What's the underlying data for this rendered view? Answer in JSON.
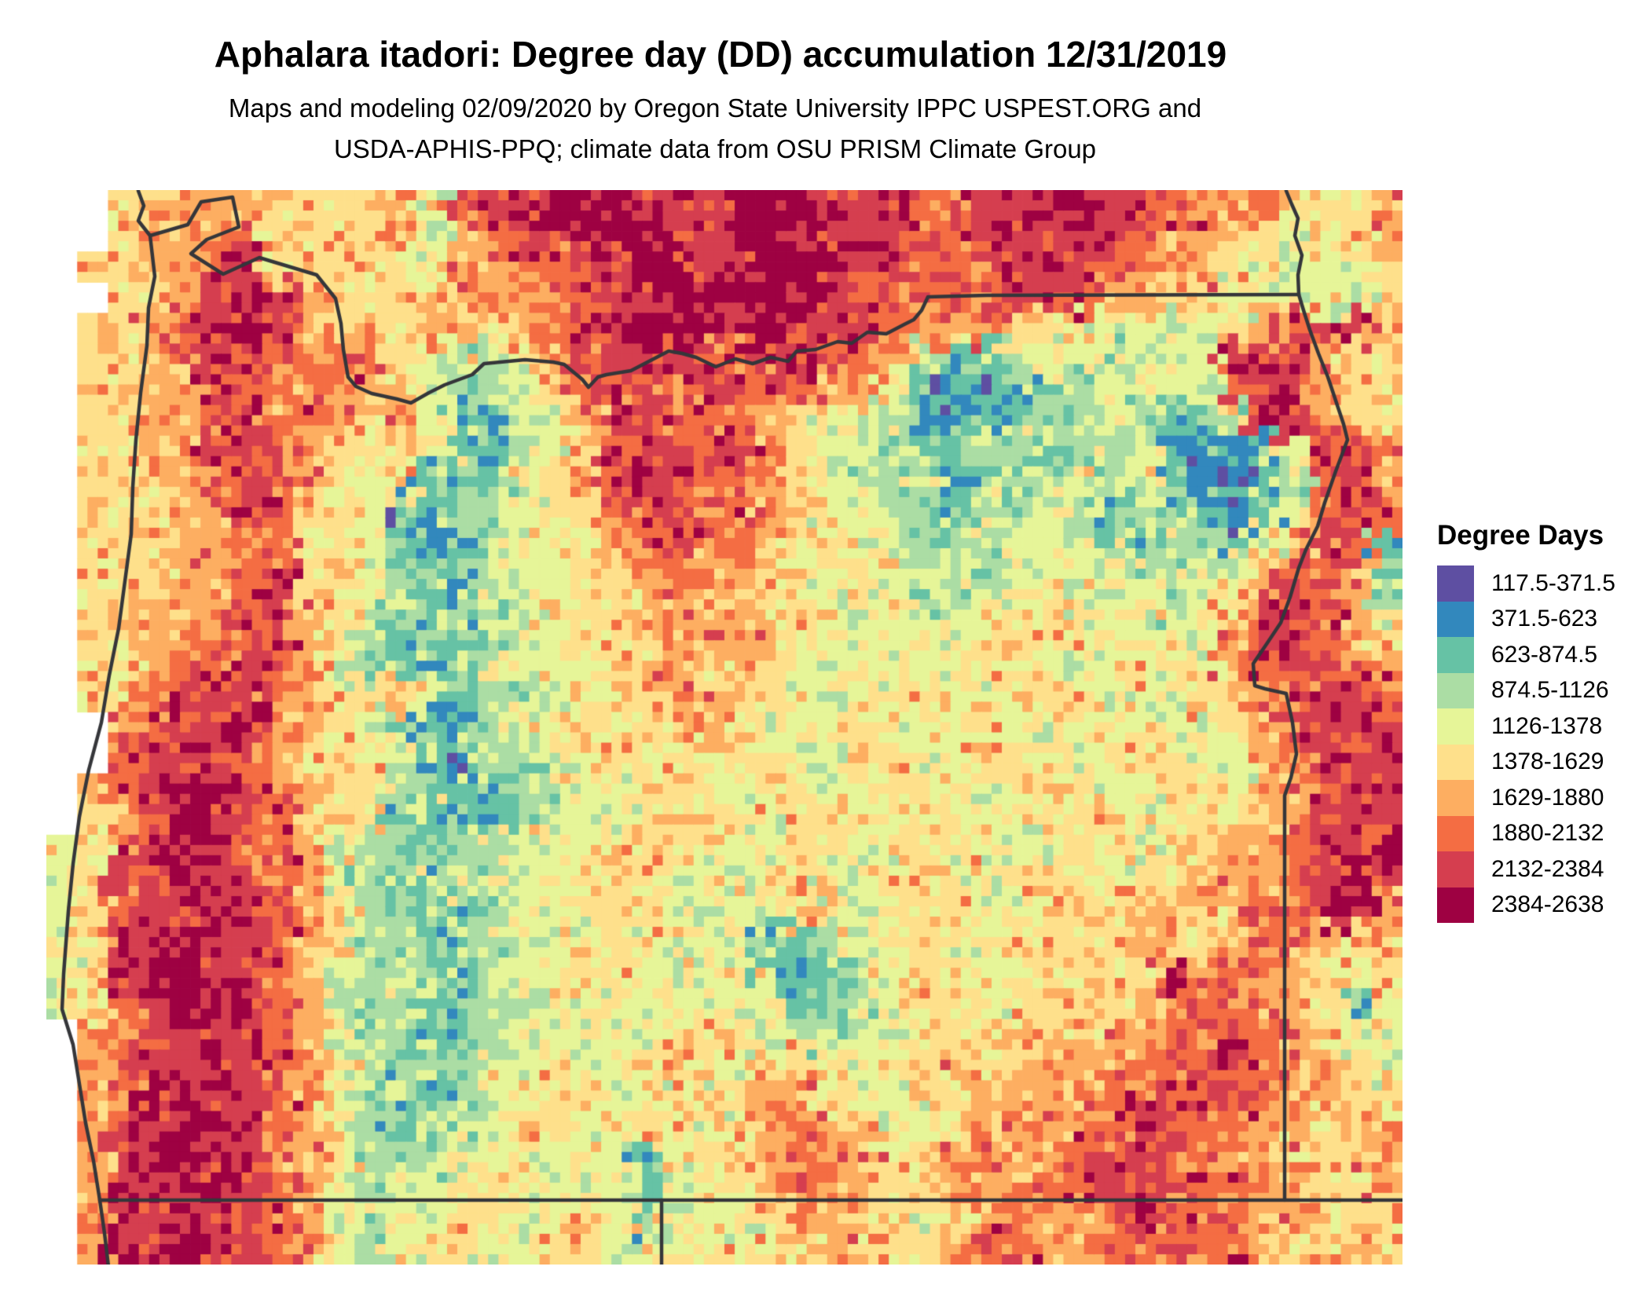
{
  "header": {
    "title": "Aphalara itadori: Degree day (DD) accumulation 12/31/2019",
    "subtitle_line1": "Maps and modeling 02/09/2020 by Oregon State University IPPC USPEST.ORG and",
    "subtitle_line2": "USDA-APHIS-PPQ; climate data from OSU PRISM Climate Group"
  },
  "legend": {
    "title": "Degree Days",
    "items": [
      {
        "range": "117.5-371.5",
        "color": "#5e4fa2"
      },
      {
        "range": "371.5-623",
        "color": "#3288bd"
      },
      {
        "range": "623-874.5",
        "color": "#66c2a5"
      },
      {
        "range": "874.5-1126",
        "color": "#abdda4"
      },
      {
        "range": "1126-1378",
        "color": "#e6f598"
      },
      {
        "range": "1378-1629",
        "color": "#fee08b"
      },
      {
        "range": "1629-1880",
        "color": "#fdae61"
      },
      {
        "range": "1880-2132",
        "color": "#f46d43"
      },
      {
        "range": "2132-2384",
        "color": "#d53e4f"
      },
      {
        "range": "2384-2638",
        "color": "#9e0142"
      }
    ]
  },
  "map": {
    "palette": [
      "#5e4fa2",
      "#3288bd",
      "#66c2a5",
      "#abdda4",
      "#e6f598",
      "#fee08b",
      "#fdae61",
      "#f46d43",
      "#d53e4f",
      "#9e0142"
    ],
    "border_color": "#35363a",
    "zones": [
      "..556665555647889998889998887788898877676556",
      "..566675555646788999889988887788888766554456",
      ".55667855555466778899889998877788877665444456",
      "..556888655556667788899988777778876655444445",
      ".55688986555665678999889888766655444345678866",
      ".55678876675434467888778877632234434448886 55",
      ".55668767766433457877887766421123344437886 55",
      ".55667877656421346887776544311223343223887 55",
      ".55668876555432445788787543322332334211248 76",
      ".55567876544223456888776544332233434211137 86",
      ".55566875541233455787676544332334323321247 87",
      ".55566775542123445678776554433344432332468 72",
      ".55566785543223445567665445443344443344687 62",
      ".56666786543233455566665544434445444345787 63",
      ".55667786532323445556666544444455544446887 65",
      ".55677876432234444566565445444554445446788 76",
      ".55788866556423345556655444554455544455678 87",
      "..67889765431234455556544554455444554456788 8",
      "..78887655442133445555554455445544455446788 8",
      ".67899876553222344455545544554455544554668 88",
      ".56898876552322334455554554455445554455668 88",
      "4578987764332334445555445544555445545566788 9",
      "4588988764323344455544455445544555455666789 8",
      "4578898765332234445544445544554455566567788 6",
      "4588988765332334455444422345544555565567765 5",
      "4589988764333234455444422234554455559677654 5",
      "4578998764332233445444442334554555566776652 4",
      ".67888876433223444445554334455556566778765 44",
      ".68889876532334454455445544556556667788776 54",
      ".67988876433234455445556654455666677887766 55",
      ".68899876432334554455456765445676678877665 56",
      ".68998876533344544424556776556766788776655 66",
      ".68889876434455444424556766556677788877665 56",
      ".68898876434455445424445665545676678776665 55",
      ".69898876434554455444544566556776677877655 65"
    ],
    "borders": {
      "coastline": [
        [
          176,
          243
        ],
        [
          183,
          262
        ],
        [
          176,
          281
        ],
        [
          191,
          300
        ],
        [
          197,
          352
        ],
        [
          189,
          392
        ],
        [
          187,
          440
        ],
        [
          179,
          500
        ],
        [
          173,
          560
        ],
        [
          169,
          620
        ],
        [
          167,
          680
        ],
        [
          159,
          740
        ],
        [
          151,
          800
        ],
        [
          139,
          860
        ],
        [
          129,
          920
        ],
        [
          113,
          980
        ],
        [
          101,
          1040
        ],
        [
          93,
          1100
        ],
        [
          87,
          1160
        ],
        [
          81,
          1240
        ],
        [
          79,
          1285
        ],
        [
          93,
          1330
        ],
        [
          101,
          1380
        ],
        [
          109,
          1430
        ],
        [
          119,
          1478
        ],
        [
          127,
          1528
        ],
        [
          133,
          1570
        ],
        [
          138,
          1612
        ]
      ],
      "columbia_river": [
        [
          191,
          300
        ],
        [
          239,
          286
        ],
        [
          256,
          257
        ],
        [
          296,
          251
        ],
        [
          304,
          289
        ],
        [
          263,
          305
        ],
        [
          243,
          323
        ],
        [
          284,
          349
        ],
        [
          330,
          328
        ],
        [
          403,
          350
        ],
        [
          427,
          380
        ],
        [
          434,
          412
        ],
        [
          437,
          445
        ],
        [
          443,
          480
        ],
        [
          453,
          492
        ],
        [
          473,
          501
        ],
        [
          505,
          508
        ],
        [
          523,
          513
        ],
        [
          546,
          500
        ],
        [
          566,
          490
        ],
        [
          601,
          477
        ],
        [
          616,
          463
        ],
        [
          668,
          458
        ],
        [
          704,
          461
        ],
        [
          718,
          464
        ],
        [
          741,
          483
        ],
        [
          749,
          493
        ],
        [
          761,
          480
        ],
        [
          772,
          477
        ],
        [
          803,
          472
        ],
        [
          851,
          447
        ],
        [
          868,
          450
        ],
        [
          886,
          455
        ],
        [
          911,
          467
        ],
        [
          936,
          457
        ],
        [
          958,
          463
        ],
        [
          981,
          455
        ],
        [
          1003,
          460
        ],
        [
          1014,
          447
        ],
        [
          1038,
          445
        ],
        [
          1066,
          435
        ],
        [
          1084,
          437
        ],
        [
          1104,
          423
        ],
        [
          1128,
          425
        ],
        [
          1151,
          413
        ],
        [
          1163,
          407
        ],
        [
          1173,
          395
        ],
        [
          1181,
          378
        ],
        [
          1256,
          376
        ],
        [
          1653,
          375
        ]
      ],
      "snake_river_north": [
        [
          1637,
          243
        ],
        [
          1644,
          260
        ],
        [
          1652,
          278
        ],
        [
          1648,
          300
        ],
        [
          1657,
          325
        ],
        [
          1652,
          350
        ],
        [
          1653,
          375
        ]
      ],
      "snake_river": [
        [
          1653,
          375
        ],
        [
          1659,
          395
        ],
        [
          1667,
          420
        ],
        [
          1678,
          450
        ],
        [
          1690,
          480
        ],
        [
          1700,
          510
        ],
        [
          1710,
          540
        ],
        [
          1715,
          560
        ],
        [
          1700,
          600
        ],
        [
          1686,
          640
        ],
        [
          1677,
          670
        ],
        [
          1662,
          700
        ],
        [
          1653,
          723
        ],
        [
          1642,
          760
        ],
        [
          1630,
          793
        ],
        [
          1612,
          820
        ],
        [
          1595,
          845
        ],
        [
          1597,
          873
        ],
        [
          1610,
          877
        ],
        [
          1637,
          883
        ],
        [
          1645,
          920
        ],
        [
          1650,
          960
        ],
        [
          1643,
          990
        ],
        [
          1635,
          1013
        ],
        [
          1635,
          1528
        ]
      ],
      "south_border": [
        [
          127,
          1528
        ],
        [
          1786,
          1528
        ]
      ],
      "ca_nv_border": [
        [
          842,
          1528
        ],
        [
          842,
          1612
        ]
      ]
    }
  }
}
